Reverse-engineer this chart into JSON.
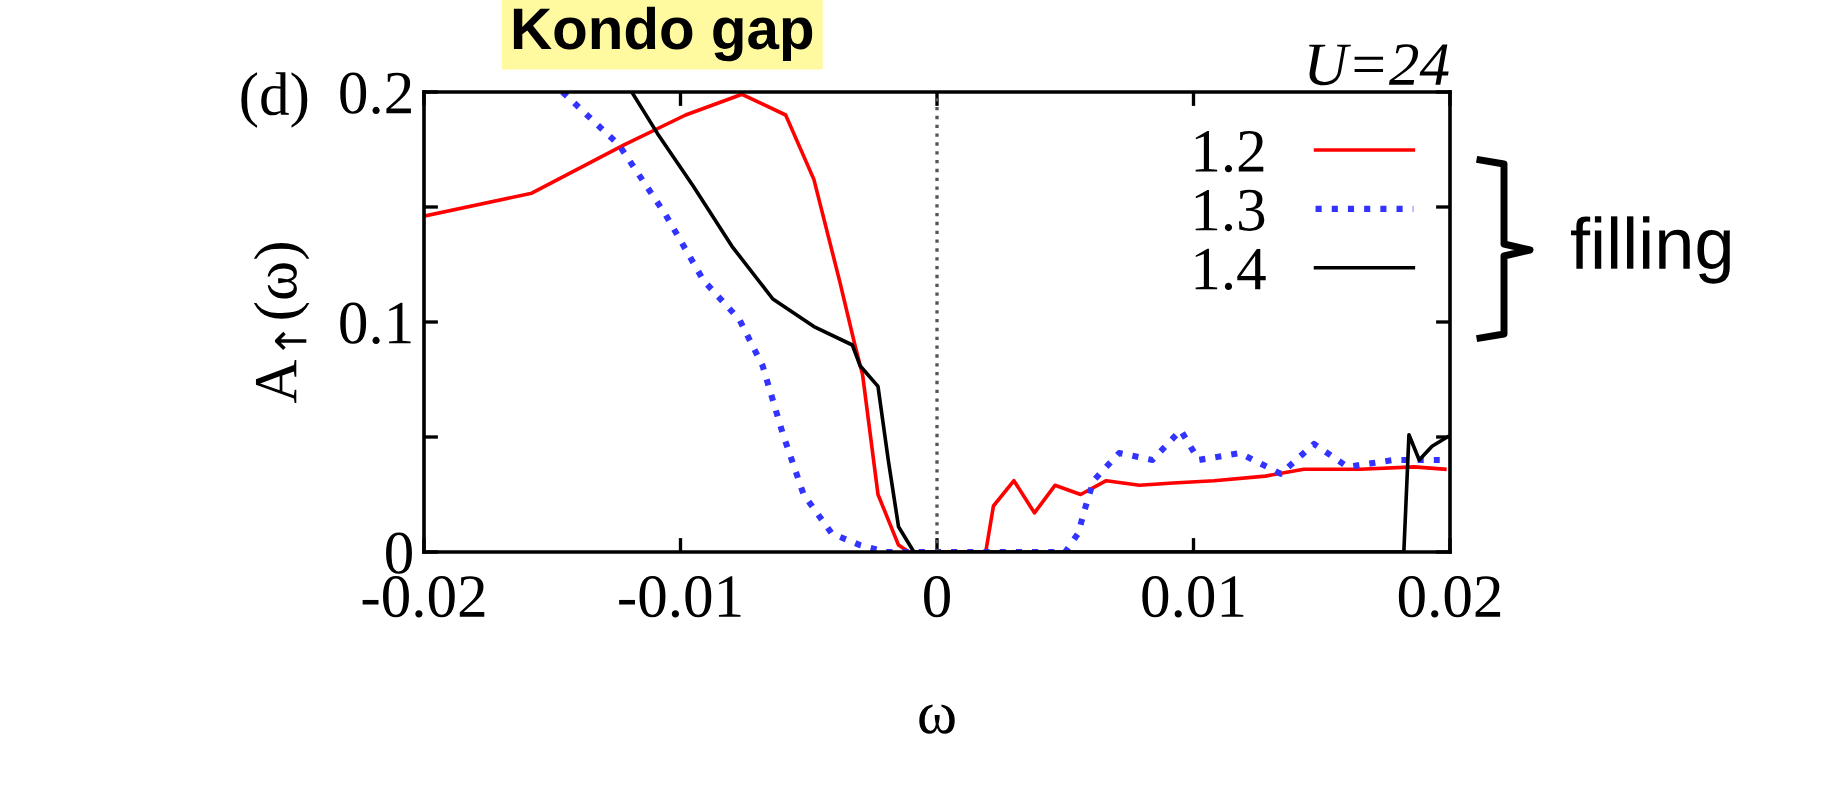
{
  "chart_data": {
    "type": "line",
    "xlabel": "ω",
    "ylabel": "A$_{↑}$(ω)",
    "legend_title": null,
    "xlim": [
      -0.02,
      0.02
    ],
    "xticks": [
      -0.02,
      -0.01,
      0,
      0.01,
      0.02
    ],
    "ylim": [
      0,
      0.2
    ],
    "yticks": [
      0,
      {
        "value": 0.05,
        "label": null
      },
      0.1,
      {
        "value": 0.15,
        "label": null
      },
      0.2
    ],
    "grid": false,
    "legend": "top right",
    "ref_lines": [
      {
        "axis": "x",
        "value": 0,
        "color": "#555555",
        "line_style": "dotted"
      }
    ],
    "annotations": [
      "(d)",
      "U=24",
      "filling",
      "Kondo gap"
    ],
    "series": [
      {
        "name": "1.2",
        "color": "#ff0000",
        "line_style": "solid",
        "x": [
          -0.02,
          -0.0158,
          -0.0122,
          -0.0098,
          -0.0076,
          -0.0059,
          -0.0048,
          -0.0038,
          -0.0032,
          -0.0029,
          -0.0023,
          -0.0015,
          -0.0011,
          0.0019,
          0.0022,
          0.003,
          0.0038,
          0.0046,
          0.0056,
          0.0066,
          0.0079,
          0.0092,
          0.0108,
          0.0128,
          0.0143,
          0.0165,
          0.0186,
          0.0198
        ],
        "values": [
          0.146,
          0.156,
          0.177,
          0.19,
          0.199,
          0.19,
          0.162,
          0.118,
          0.09,
          0.077,
          0.025,
          0.003,
          0,
          0,
          0.02,
          0.031,
          0.017,
          0.029,
          0.025,
          0.031,
          0.029,
          0.03,
          0.031,
          0.033,
          0.036,
          0.036,
          0.037,
          0.036
        ]
      },
      {
        "name": "1.3",
        "color": "#3333ff",
        "line_style": "dotted",
        "x": [
          -0.0146,
          -0.0124,
          -0.0106,
          -0.0091,
          -0.0077,
          -0.0068,
          -0.006,
          -0.0052,
          -0.0041,
          -0.003,
          -0.002,
          0.005,
          0.0055,
          0.0058,
          0.0061,
          0.0071,
          0.0084,
          0.0095,
          0.0102,
          0.0118,
          0.0134,
          0.0147,
          0.016,
          0.0178,
          0.0196
        ],
        "values": [
          0.2,
          0.177,
          0.147,
          0.118,
          0.101,
          0.081,
          0.051,
          0.025,
          0.008,
          0.003,
          0,
          0,
          0.008,
          0.02,
          0.031,
          0.043,
          0.04,
          0.053,
          0.04,
          0.043,
          0.034,
          0.047,
          0.037,
          0.04,
          0.04
        ]
      },
      {
        "name": "1.4",
        "color": "#000000",
        "line_style": "solid",
        "x": [
          -0.0119,
          -0.0109,
          -0.0095,
          -0.008,
          -0.0064,
          -0.0048,
          -0.0033,
          -0.003,
          -0.0023,
          -0.0019,
          -0.0015,
          -0.0009,
          0.0182,
          0.0184,
          0.0188,
          0.0193,
          0.0199
        ],
        "values": [
          0.2,
          0.182,
          0.159,
          0.133,
          0.11,
          0.098,
          0.09,
          0.081,
          0.072,
          0.04,
          0.011,
          0,
          0,
          0.051,
          0.04,
          0.046,
          0.05
        ]
      }
    ]
  }
}
